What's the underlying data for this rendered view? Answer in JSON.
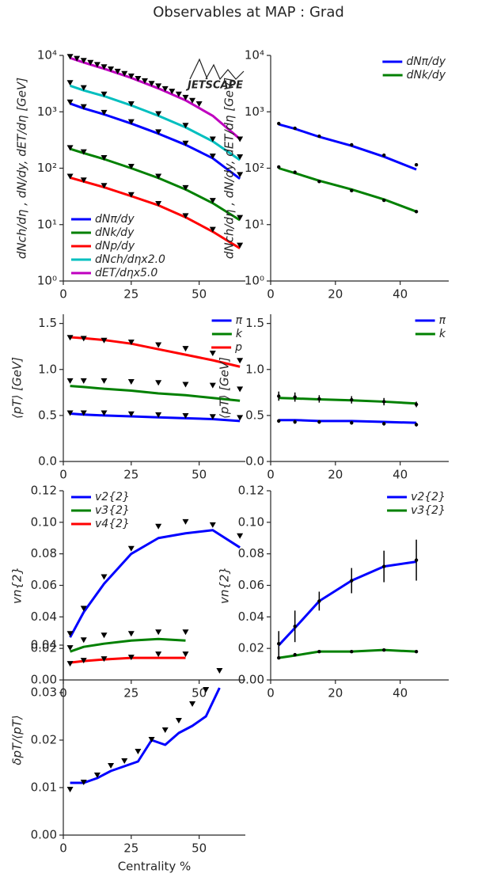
{
  "title": "Observables at MAP : Grad",
  "chart_data": [
    {
      "type": "line",
      "log": true,
      "logo": "JETSCAPE",
      "ylabel": "dNch/dη , dN/dy, dET/dη [GeV]",
      "legend": "lower left",
      "xlim": [
        0,
        67
      ],
      "ylim": [
        1,
        10000
      ],
      "xticks": [
        0,
        25,
        50
      ],
      "yticks": [
        {
          "value": 1,
          "label": "10⁰"
        },
        {
          "value": 10,
          "label": "10¹"
        },
        {
          "value": 100,
          "label": "10²"
        },
        {
          "value": 1000,
          "label": "10³"
        },
        {
          "value": 10000,
          "label": "10⁴"
        }
      ],
      "series": [
        {
          "name": "dNπ/dy",
          "color": "#0000ff",
          "x": [
            2.5,
            7.5,
            15,
            25,
            35,
            45,
            55,
            65
          ],
          "values": [
            1400,
            1150,
            900,
            620,
            410,
            260,
            150,
            65
          ]
        },
        {
          "name": "dNk/dy",
          "color": "#008000",
          "x": [
            2.5,
            7.5,
            15,
            25,
            35,
            45,
            55,
            65
          ],
          "values": [
            220,
            185,
            145,
            100,
            67,
            42,
            24,
            12
          ]
        },
        {
          "name": "dNp/dy",
          "color": "#ff0000",
          "x": [
            2.5,
            7.5,
            15,
            25,
            35,
            45,
            55,
            65
          ],
          "values": [
            68,
            58,
            46,
            32,
            22,
            13.5,
            7.5,
            3.8
          ]
        },
        {
          "name": "dNch/dηx2.0",
          "color": "#00bfbf",
          "x": [
            2.5,
            7.5,
            15,
            25,
            35,
            45,
            55,
            65
          ],
          "values": [
            2900,
            2400,
            1900,
            1300,
            850,
            530,
            300,
            140
          ]
        },
        {
          "name": "dET/dηx5.0",
          "color": "#bf00bf",
          "x": [
            2.5,
            7.5,
            15,
            25,
            35,
            45,
            55,
            65
          ],
          "values": [
            9000,
            7500,
            5800,
            4000,
            2600,
            1600,
            850,
            330
          ]
        }
      ],
      "data": [
        {
          "marker": "triangle",
          "x": [
            2.5,
            7.5,
            15,
            25,
            35,
            45,
            55,
            65
          ],
          "values": [
            1450,
            1200,
            950,
            650,
            430,
            270,
            160,
            75
          ]
        },
        {
          "marker": "triangle",
          "x": [
            2.5,
            7.5,
            15,
            25,
            35,
            45,
            55,
            65
          ],
          "values": [
            225,
            190,
            150,
            105,
            70,
            44,
            26,
            13
          ]
        },
        {
          "marker": "triangle",
          "x": [
            2.5,
            7.5,
            15,
            25,
            35,
            45,
            55,
            65
          ],
          "values": [
            70,
            60,
            48,
            33,
            23,
            14,
            8,
            4.2
          ]
        },
        {
          "marker": "triangle",
          "x": [
            2.5,
            7.5,
            15,
            25,
            35,
            45,
            55,
            65
          ],
          "values": [
            3200,
            2600,
            2000,
            1350,
            900,
            560,
            320,
            155
          ]
        },
        {
          "marker": "triangle",
          "x": [
            2.5,
            5,
            7.5,
            10,
            12.5,
            15,
            17.5,
            20,
            22.5,
            25,
            27.5,
            30,
            32.5,
            35,
            37.5,
            40,
            42.5,
            45,
            47.5,
            50,
            65
          ],
          "values": [
            9300,
            8600,
            7900,
            7300,
            6700,
            6100,
            5600,
            5100,
            4650,
            4200,
            3800,
            3450,
            3100,
            2800,
            2500,
            2250,
            2000,
            1750,
            1550,
            1350,
            320
          ]
        }
      ]
    },
    {
      "type": "line",
      "log": true,
      "ylabel": "dNch/dη , dN/dy, dET/dη [GeV]",
      "legend": "upper right",
      "xlim": [
        0,
        55
      ],
      "ylim": [
        1,
        10000
      ],
      "xticks": [
        0,
        20,
        40
      ],
      "yticks": [
        {
          "value": 1,
          "label": "10⁰"
        },
        {
          "value": 10,
          "label": "10¹"
        },
        {
          "value": 100,
          "label": "10²"
        },
        {
          "value": 1000,
          "label": "10³"
        },
        {
          "value": 10000,
          "label": "10⁴"
        }
      ],
      "series": [
        {
          "name": "dNπ/dy",
          "color": "#0000ff",
          "x": [
            2.5,
            7.5,
            15,
            25,
            35,
            45
          ],
          "values": [
            600,
            500,
            360,
            250,
            160,
            95
          ]
        },
        {
          "name": "dNk/dy",
          "color": "#008000",
          "x": [
            2.5,
            7.5,
            15,
            25,
            35,
            45
          ],
          "values": [
            100,
            82,
            60,
            42,
            28,
            17
          ]
        }
      ],
      "data": [
        {
          "marker": "dot",
          "x": [
            2.5,
            7.5,
            15,
            25,
            35,
            45
          ],
          "values": [
            620,
            510,
            370,
            260,
            170,
            115
          ]
        },
        {
          "marker": "dot",
          "x": [
            2.5,
            7.5,
            15,
            25,
            35,
            45
          ],
          "values": [
            105,
            85,
            58,
            40,
            27,
            17
          ]
        }
      ]
    },
    {
      "type": "line",
      "ylabel": "⟨pT⟩ [GeV]",
      "legend": "upper right",
      "xlim": [
        0,
        67
      ],
      "ylim": [
        0,
        1.6
      ],
      "xticks": [
        0,
        25,
        50
      ],
      "yticks": [
        {
          "value": 0,
          "label": "0.0"
        },
        0.5,
        {
          "value": 1,
          "label": "1.0"
        },
        1.5
      ],
      "series": [
        {
          "name": "π",
          "color": "#0000ff",
          "x": [
            2.5,
            7.5,
            15,
            25,
            35,
            45,
            55,
            65
          ],
          "values": [
            0.52,
            0.51,
            0.5,
            0.49,
            0.48,
            0.47,
            0.46,
            0.44
          ]
        },
        {
          "name": "k",
          "color": "#008000",
          "x": [
            2.5,
            7.5,
            15,
            25,
            35,
            45,
            55,
            65
          ],
          "values": [
            0.82,
            0.81,
            0.79,
            0.77,
            0.74,
            0.72,
            0.69,
            0.66
          ]
        },
        {
          "name": "p",
          "color": "#ff0000",
          "x": [
            2.5,
            7.5,
            15,
            25,
            35,
            45,
            55,
            65
          ],
          "values": [
            1.35,
            1.34,
            1.32,
            1.28,
            1.22,
            1.16,
            1.1,
            1.03
          ]
        }
      ],
      "data": [
        {
          "marker": "triangle",
          "x": [
            2.5,
            7.5,
            15,
            25,
            35,
            45,
            55,
            65
          ],
          "values": [
            0.52,
            0.52,
            0.52,
            0.51,
            0.5,
            0.49,
            0.48,
            0.47
          ]
        },
        {
          "marker": "triangle",
          "x": [
            2.5,
            7.5,
            15,
            25,
            35,
            45,
            55,
            65
          ],
          "values": [
            0.87,
            0.87,
            0.87,
            0.86,
            0.85,
            0.83,
            0.82,
            0.78
          ]
        },
        {
          "marker": "triangle",
          "x": [
            2.5,
            7.5,
            15,
            25,
            35,
            45,
            55,
            65
          ],
          "values": [
            1.34,
            1.33,
            1.31,
            1.29,
            1.26,
            1.22,
            1.17,
            1.09
          ]
        }
      ]
    },
    {
      "type": "line",
      "ylabel": "⟨pT⟩ [GeV]",
      "legend": "upper right",
      "xlim": [
        0,
        55
      ],
      "ylim": [
        0,
        1.6
      ],
      "xticks": [
        0,
        20,
        40
      ],
      "yticks": [
        {
          "value": 0,
          "label": "0.0"
        },
        0.5,
        {
          "value": 1,
          "label": "1.0"
        },
        1.5
      ],
      "series": [
        {
          "name": "π",
          "color": "#0000ff",
          "x": [
            2.5,
            7.5,
            15,
            25,
            35,
            45
          ],
          "values": [
            0.45,
            0.45,
            0.44,
            0.44,
            0.43,
            0.42
          ]
        },
        {
          "name": "k",
          "color": "#008000",
          "x": [
            2.5,
            7.5,
            15,
            25,
            35,
            45
          ],
          "values": [
            0.69,
            0.685,
            0.675,
            0.665,
            0.65,
            0.63
          ]
        }
      ],
      "data": [
        {
          "marker": "dot",
          "x": [
            2.5,
            7.5,
            15,
            25,
            35,
            45
          ],
          "values": [
            0.44,
            0.43,
            0.43,
            0.42,
            0.41,
            0.4
          ],
          "errors": [
            0.02,
            0.02,
            0.02,
            0.02,
            0.02,
            0.02
          ]
        },
        {
          "marker": "dot",
          "x": [
            2.5,
            7.5,
            15,
            25,
            35,
            45
          ],
          "values": [
            0.71,
            0.7,
            0.68,
            0.67,
            0.65,
            0.62
          ],
          "errors": [
            0.05,
            0.05,
            0.04,
            0.04,
            0.04,
            0.03
          ]
        }
      ]
    },
    {
      "type": "line",
      "ylabel": "vn{2}",
      "legend": "upper left",
      "xlim": [
        0,
        67
      ],
      "ylim": [
        0,
        0.12
      ],
      "xticks": [
        0,
        25,
        50
      ],
      "yticks": [
        {
          "value": 0,
          "label": "0.00"
        },
        0.02,
        0.04,
        0.06,
        0.08,
        {
          "value": 0.1,
          "label": "0.10"
        },
        0.12
      ],
      "series": [
        {
          "name": "v2{2}",
          "color": "#0000ff",
          "x": [
            2.5,
            7.5,
            15,
            25,
            35,
            45,
            55,
            65
          ],
          "values": [
            0.027,
            0.043,
            0.061,
            0.08,
            0.09,
            0.093,
            0.095,
            0.084
          ]
        },
        {
          "name": "v3{2}",
          "color": "#008000",
          "x": [
            2.5,
            7.5,
            15,
            25,
            35,
            45
          ],
          "values": [
            0.018,
            0.021,
            0.023,
            0.025,
            0.026,
            0.025
          ]
        },
        {
          "name": "v4{2}",
          "color": "#ff0000",
          "x": [
            2.5,
            7.5,
            15,
            25,
            35,
            45
          ],
          "values": [
            0.011,
            0.012,
            0.013,
            0.014,
            0.014,
            0.014
          ]
        }
      ],
      "data": [
        {
          "marker": "triangle",
          "x": [
            2.5,
            7.5,
            15,
            25,
            35,
            45,
            55,
            65
          ],
          "values": [
            0.029,
            0.045,
            0.065,
            0.083,
            0.097,
            0.1,
            0.098,
            0.091
          ]
        },
        {
          "marker": "triangle",
          "x": [
            2.5,
            7.5,
            15,
            25,
            35,
            45
          ],
          "values": [
            0.02,
            0.025,
            0.028,
            0.029,
            0.03,
            0.03
          ]
        },
        {
          "marker": "triangle",
          "x": [
            2.5,
            7.5,
            15,
            25,
            35,
            45
          ],
          "values": [
            0.01,
            0.012,
            0.013,
            0.014,
            0.016,
            0.016
          ]
        }
      ]
    },
    {
      "type": "line",
      "ylabel": "vn{2}",
      "legend": "upper right",
      "xlim": [
        0,
        55
      ],
      "ylim": [
        0,
        0.12
      ],
      "xticks": [
        0,
        20,
        40
      ],
      "yticks": [
        {
          "value": 0,
          "label": "0.00"
        },
        0.02,
        0.04,
        0.06,
        0.08,
        {
          "value": 0.1,
          "label": "0.10"
        },
        0.12
      ],
      "series": [
        {
          "name": "v2{2}",
          "color": "#0000ff",
          "x": [
            2.5,
            7.5,
            15,
            25,
            35,
            45
          ],
          "values": [
            0.022,
            0.033,
            0.05,
            0.063,
            0.072,
            0.075
          ]
        },
        {
          "name": "v3{2}",
          "color": "#008000",
          "x": [
            2.5,
            7.5,
            15,
            25,
            35,
            45
          ],
          "values": [
            0.014,
            0.0155,
            0.018,
            0.018,
            0.019,
            0.018
          ]
        }
      ],
      "data": [
        {
          "marker": "dot",
          "x": [
            2.5,
            7.5,
            15,
            25,
            35,
            45
          ],
          "values": [
            0.023,
            0.034,
            0.05,
            0.063,
            0.072,
            0.076
          ],
          "errors": [
            0.008,
            0.01,
            0.006,
            0.008,
            0.01,
            0.013
          ]
        },
        {
          "marker": "dot",
          "x": [
            2.5,
            7.5,
            15,
            25,
            35,
            45
          ],
          "values": [
            0.014,
            0.016,
            0.018,
            0.018,
            0.019,
            0.018
          ]
        }
      ]
    },
    {
      "type": "line",
      "ylabel": "δpT/⟨pT⟩",
      "xlabel": "Centrality %",
      "xlim": [
        0,
        67
      ],
      "ylim": [
        0,
        0.04
      ],
      "xticks": [
        0,
        25,
        50
      ],
      "yticks": [
        {
          "value": 0,
          "label": "0.00"
        },
        0.01,
        0.02,
        0.03,
        0.04
      ],
      "series": [
        {
          "color": "#0000ff",
          "x": [
            2.5,
            7.5,
            12.5,
            17.5,
            22.5,
            27.5,
            32.5,
            37.5,
            42.5,
            47.5,
            52.5,
            57.5
          ],
          "values": [
            0.011,
            0.011,
            0.012,
            0.0135,
            0.0145,
            0.0155,
            0.02,
            0.019,
            0.0215,
            0.023,
            0.025,
            0.031
          ]
        }
      ],
      "data": [
        {
          "marker": "triangle",
          "x": [
            2.5,
            7.5,
            12.5,
            17.5,
            22.5,
            27.5,
            32.5,
            37.5,
            42.5,
            47.5,
            52.5,
            57.5
          ],
          "values": [
            0.0095,
            0.011,
            0.0125,
            0.0145,
            0.0155,
            0.0175,
            0.02,
            0.022,
            0.024,
            0.0275,
            0.0305,
            0.0345
          ]
        }
      ]
    }
  ]
}
